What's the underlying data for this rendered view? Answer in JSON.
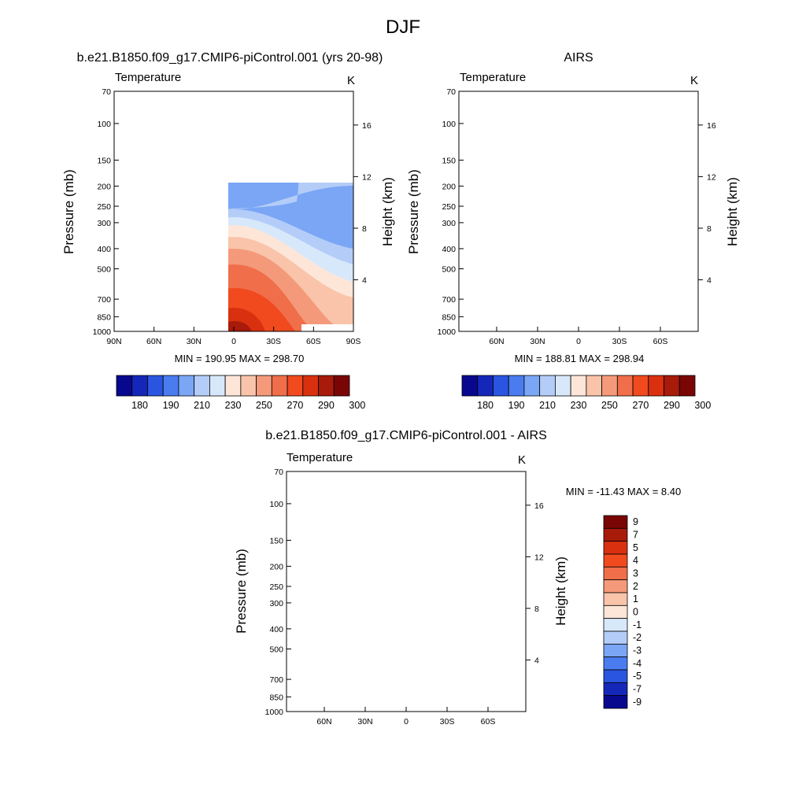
{
  "figure": {
    "title": "DJF"
  },
  "colors": {
    "blue_navy": "#08088f",
    "blue_dark": "#1527b9",
    "blue": "#2a55e0",
    "blue_mid": "#4a7cf0",
    "blue_light": "#7aa6f5",
    "blue_pale": "#b4cdf8",
    "blue_faint": "#d8e8fb",
    "cream": "#fde6d8",
    "peach": "#f9c4aa",
    "salmon": "#f49a7a",
    "orange_red": "#f06e4a",
    "red_orange": "#f04a1e",
    "red": "#d9300f",
    "dark_red": "#a81a0a",
    "maroon": "#7a0505"
  },
  "chart_data": [
    {
      "type": "heatmap",
      "title": "b.e21.B1850.f09_g17.CMIP6-piControl.001 (yrs 20-98)",
      "left_label": "Temperature",
      "right_label": "K",
      "ylabel": "Pressure (mb)",
      "y2label": "Height (km)",
      "xticks": [
        "90N",
        "60N",
        "30N",
        "0",
        "30S",
        "60S",
        "90S"
      ],
      "yticks": [
        70,
        100,
        150,
        200,
        250,
        300,
        400,
        500,
        700,
        850,
        1000
      ],
      "y2ticks": [
        4,
        8,
        12,
        16
      ],
      "xlim": [
        "90N",
        "90S"
      ],
      "ylim": [
        1000,
        70
      ],
      "stats": "MIN = 190.95  MAX = 298.70",
      "min": 190.95,
      "max": 298.7,
      "levels": [
        "180",
        "190",
        "210",
        "230",
        "250",
        "270",
        "290",
        "300"
      ]
    },
    {
      "type": "heatmap",
      "title": "AIRS",
      "left_label": "Temperature",
      "right_label": "K",
      "ylabel": "Pressure (mb)",
      "y2label": "Height (km)",
      "xticks": [
        "60N",
        "30N",
        "0",
        "30S",
        "60S"
      ],
      "yticks": [
        70,
        100,
        150,
        200,
        250,
        300,
        400,
        500,
        700,
        850,
        1000
      ],
      "y2ticks": [
        4,
        8,
        12,
        16
      ],
      "ylim": [
        1000,
        70
      ],
      "stats": "MIN = 188.81  MAX = 298.94",
      "min": 188.81,
      "max": 298.94,
      "levels": [
        "180",
        "190",
        "210",
        "230",
        "250",
        "270",
        "290",
        "300"
      ]
    },
    {
      "type": "heatmap",
      "title": "b.e21.B1850.f09_g17.CMIP6-piControl.001 - AIRS",
      "left_label": "Temperature",
      "right_label": "K",
      "ylabel": "Pressure (mb)",
      "y2label": "Height (km)",
      "xticks": [
        "60N",
        "30N",
        "0",
        "30S",
        "60S"
      ],
      "yticks": [
        70,
        100,
        150,
        200,
        250,
        300,
        400,
        500,
        700,
        850,
        1000
      ],
      "y2ticks": [
        4,
        8,
        12,
        16
      ],
      "ylim": [
        1000,
        70
      ],
      "stats": "MIN = -11.43  MAX =   8.40",
      "min": -11.43,
      "max": 8.4,
      "levels": [
        "9",
        "7",
        "5",
        "4",
        "3",
        "2",
        "1",
        "0",
        "-1",
        "-2",
        "-3",
        "-4",
        "-5",
        "-7",
        "-9"
      ]
    }
  ]
}
